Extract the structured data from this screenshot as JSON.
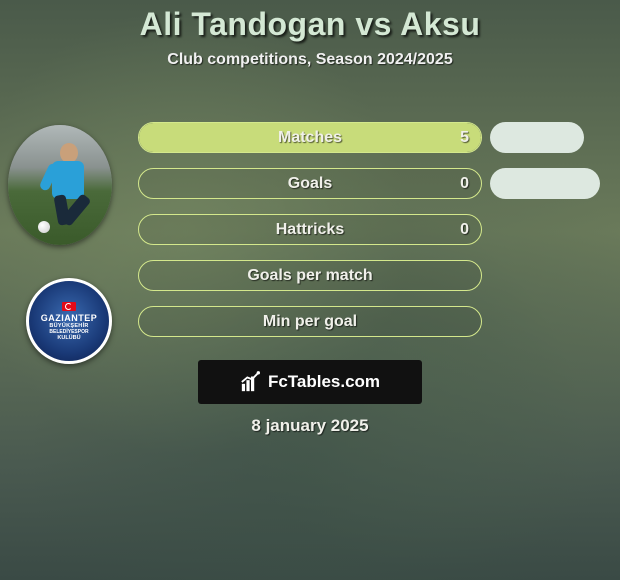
{
  "title": "Ali Tandogan vs Aksu",
  "subtitle": "Club competitions, Season 2024/2025",
  "date": "8 january 2025",
  "brand": "FcTables.com",
  "colors": {
    "pill_border": "#d4e88c",
    "fill_left": "#c8dc7a",
    "right_pill": "#dde8e0",
    "text": "#f0f0ea",
    "brand_bg": "#111111"
  },
  "badge": {
    "line1": "GAZIANTEP",
    "line2": "BÜYÜKŞEHİR",
    "line3": "BELEDİYESPOR",
    "line4": "KULÜBÜ"
  },
  "stats": [
    {
      "label": "Matches",
      "left_value": "5",
      "left_fill_pct": 100,
      "right_fill_pct": 0,
      "show_left_value": true,
      "right_pill": true
    },
    {
      "label": "Goals",
      "left_value": "0",
      "left_fill_pct": 0,
      "right_fill_pct": 0,
      "show_left_value": true,
      "right_pill": true
    },
    {
      "label": "Hattricks",
      "left_value": "0",
      "left_fill_pct": 0,
      "right_fill_pct": 0,
      "show_left_value": true,
      "right_pill": false
    },
    {
      "label": "Goals per match",
      "left_value": "",
      "left_fill_pct": 0,
      "right_fill_pct": 0,
      "show_left_value": false,
      "right_pill": false
    },
    {
      "label": "Min per goal",
      "left_value": "",
      "left_fill_pct": 0,
      "right_fill_pct": 0,
      "show_left_value": false,
      "right_pill": false
    }
  ]
}
